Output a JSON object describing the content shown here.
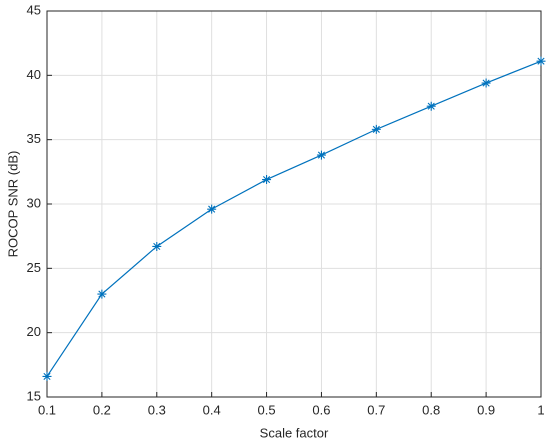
{
  "chart_data": {
    "type": "line",
    "xlabel": "Scale factor",
    "ylabel": "ROCOP SNR (dB)",
    "x": [
      0.1,
      0.2,
      0.3,
      0.4,
      0.5,
      0.6,
      0.7,
      0.8,
      0.9,
      1
    ],
    "values": [
      16.6,
      23.0,
      26.7,
      29.6,
      31.9,
      33.8,
      35.8,
      37.6,
      39.4,
      41.1
    ],
    "color": "#0072bd",
    "marker": "asterisk",
    "xlim": [
      0.1,
      1
    ],
    "xticks": [
      0.1,
      0.2,
      0.3,
      0.4,
      0.5,
      0.6,
      0.7,
      0.8,
      0.9,
      1
    ],
    "ylim": [
      15,
      45
    ],
    "yticks": [
      15,
      20,
      25,
      30,
      35,
      40,
      45
    ],
    "grid": true
  }
}
